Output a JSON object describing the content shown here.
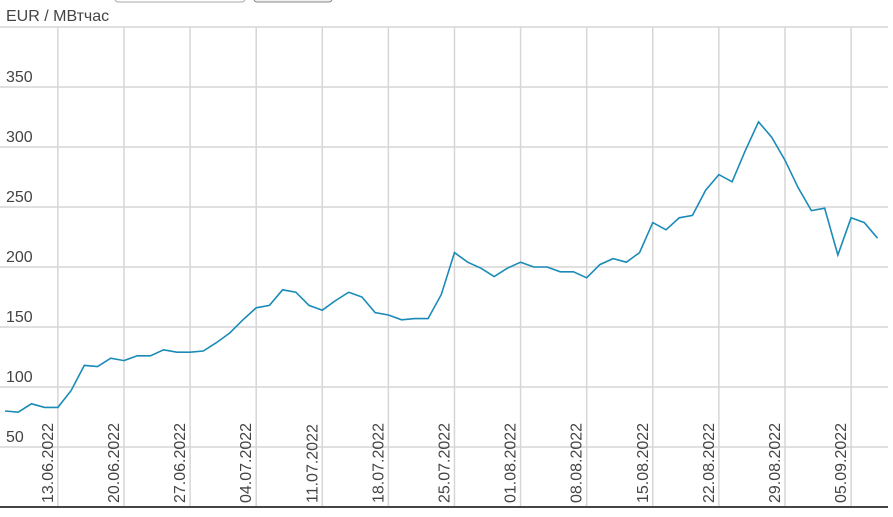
{
  "chart_data": {
    "type": "line",
    "y_label": "EUR / МВтчас",
    "categories": [
      null,
      null,
      null,
      null,
      "13.06.2022",
      null,
      null,
      null,
      null,
      "20.06.2022",
      null,
      null,
      null,
      null,
      "27.06.2022",
      null,
      null,
      null,
      null,
      "04.07.2022",
      null,
      null,
      null,
      null,
      "11.07.2022",
      null,
      null,
      null,
      null,
      "18.07.2022",
      null,
      null,
      null,
      null,
      "25.07.2022",
      null,
      null,
      null,
      null,
      "01.08.2022",
      null,
      null,
      null,
      null,
      "08.08.2022",
      null,
      null,
      null,
      null,
      "15.08.2022",
      null,
      null,
      null,
      null,
      "22.08.2022",
      null,
      null,
      null,
      null,
      "29.08.2022",
      null,
      null,
      null,
      null,
      "05.09.2022",
      null,
      null
    ],
    "series": [
      {
        "color": "#1a8bb8",
        "values": [
          80,
          79,
          86,
          83,
          83,
          97,
          118,
          117,
          124,
          122,
          126,
          126,
          131,
          129,
          129,
          130,
          137,
          145,
          156,
          166,
          168,
          181,
          179,
          168,
          164,
          172,
          179,
          175,
          162,
          160,
          156,
          157,
          157,
          177,
          212,
          204,
          199,
          192,
          199,
          204,
          200,
          200,
          196,
          196,
          191,
          202,
          207,
          204,
          212,
          237,
          231,
          241,
          243,
          264,
          277,
          271,
          297,
          321,
          308,
          289,
          266,
          247,
          249,
          210,
          241,
          237,
          224
        ]
      }
    ],
    "ylim": [
      0,
      400
    ],
    "yticks": [
      50,
      100,
      150,
      200,
      250,
      300,
      350
    ],
    "grid": true
  }
}
